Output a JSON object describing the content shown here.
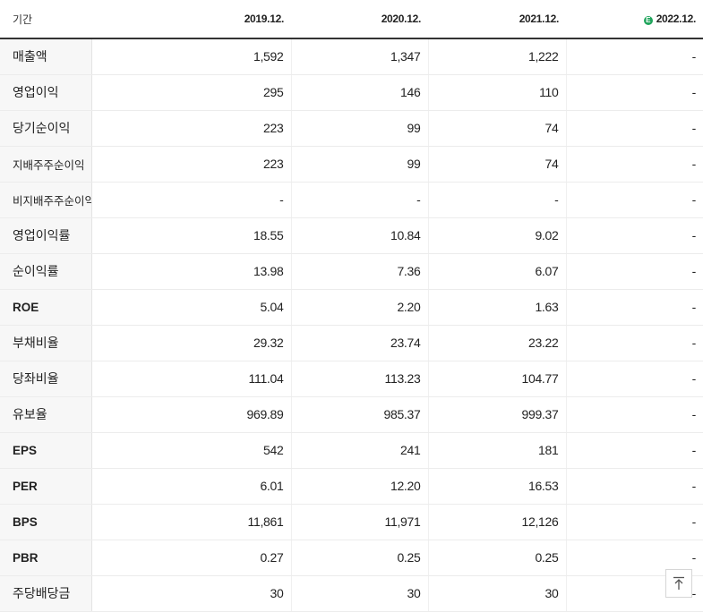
{
  "header": {
    "period_label": "기간",
    "years": [
      {
        "label": "2019.12.",
        "estimate": false
      },
      {
        "label": "2020.12.",
        "estimate": false
      },
      {
        "label": "2021.12.",
        "estimate": false
      },
      {
        "label": "2022.12.",
        "estimate": true,
        "estimate_badge": "E"
      }
    ]
  },
  "rows": [
    {
      "label": "매출액",
      "values": [
        "1,592",
        "1,347",
        "1,222",
        "-"
      ]
    },
    {
      "label": "영업이익",
      "values": [
        "295",
        "146",
        "110",
        "-"
      ]
    },
    {
      "label": "당기순이익",
      "values": [
        "223",
        "99",
        "74",
        "-"
      ]
    },
    {
      "label": "지배주주순이익",
      "values": [
        "223",
        "99",
        "74",
        "-"
      ]
    },
    {
      "label": "비지배주주순이익",
      "values": [
        "-",
        "-",
        "-",
        "-"
      ]
    },
    {
      "label": "영업이익률",
      "values": [
        "18.55",
        "10.84",
        "9.02",
        "-"
      ]
    },
    {
      "label": "순이익률",
      "values": [
        "13.98",
        "7.36",
        "6.07",
        "-"
      ]
    },
    {
      "label": "ROE",
      "values": [
        "5.04",
        "2.20",
        "1.63",
        "-"
      ]
    },
    {
      "label": "부채비율",
      "values": [
        "29.32",
        "23.74",
        "23.22",
        "-"
      ]
    },
    {
      "label": "당좌비율",
      "values": [
        "111.04",
        "113.23",
        "104.77",
        "-"
      ]
    },
    {
      "label": "유보율",
      "values": [
        "969.89",
        "985.37",
        "999.37",
        "-"
      ]
    },
    {
      "label": "EPS",
      "values": [
        "542",
        "241",
        "181",
        "-"
      ]
    },
    {
      "label": "PER",
      "values": [
        "6.01",
        "12.20",
        "16.53",
        "-"
      ]
    },
    {
      "label": "BPS",
      "values": [
        "11,861",
        "11,971",
        "12,126",
        "-"
      ]
    },
    {
      "label": "PBR",
      "values": [
        "0.27",
        "0.25",
        "0.25",
        "-"
      ]
    },
    {
      "label": "주당배당금",
      "values": [
        "30",
        "30",
        "30",
        "-"
      ]
    }
  ],
  "scroll_top_button": {
    "icon": "arrow-up-to-top-icon"
  }
}
